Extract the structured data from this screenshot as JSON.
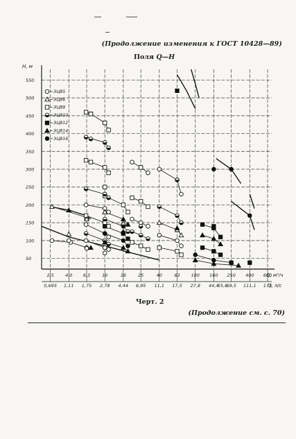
{
  "header": {
    "continuation": "(Продолжение изменения к ГОСТ 10428—89)",
    "subtitle_prefix": "Поля ",
    "subtitle_var": "Q—H"
  },
  "caption": "Черт. 2",
  "continued": "(Продолжение см. с. 70)",
  "chart_data": {
    "type": "scatter",
    "title": "",
    "xlabel": "Q, м³/ч",
    "x2label": "Q, л/с",
    "ylabel": "H, м",
    "x_scale": "log",
    "y_scale": "linear",
    "grid": true,
    "legend_position": "top-left",
    "xlim": [
      2,
      700
    ],
    "ylim": [
      20,
      580
    ],
    "x_ticks": [
      "2,5",
      "4,0",
      "6,3",
      "10",
      "16",
      "25",
      "40",
      "63",
      "100",
      "160",
      "250",
      "400",
      "630"
    ],
    "x_tick_values": [
      2.5,
      4.0,
      6.3,
      10,
      16,
      25,
      40,
      63,
      100,
      160,
      250,
      400,
      630
    ],
    "x2_ticks": [
      "0,695",
      "1,11",
      "1,75",
      "2,78",
      "4,44",
      "6,95",
      "11,1",
      "17,5",
      "27,8",
      "44,4",
      "69,5",
      "111,1",
      "175"
    ],
    "x2_tick_values": [
      0.695,
      1.11,
      1.75,
      2.78,
      4.44,
      6.95,
      11.1,
      17.5,
      27.8,
      44.4,
      69.5,
      111.1,
      175
    ],
    "x2_extra": [
      "55,6"
    ],
    "x2_extra_values": [
      55.6
    ],
    "y_ticks": [
      "50",
      "100",
      "150",
      "200",
      "250",
      "300",
      "350",
      "400",
      "450",
      "500",
      "550"
    ],
    "y_tick_values": [
      50,
      100,
      150,
      200,
      250,
      300,
      350,
      400,
      450,
      500,
      550
    ],
    "series": [
      {
        "name": "ЭЦВ5",
        "marker": "circle-open",
        "points": [
          [
            4,
            100
          ],
          [
            6.3,
            78
          ],
          [
            10,
            65
          ]
        ]
      },
      {
        "name": "ЭЦВ6",
        "marker": "triangle-open",
        "points": [
          [
            4,
            118
          ],
          [
            6.3,
            160
          ],
          [
            10,
            180
          ],
          [
            16,
            150
          ]
        ]
      },
      {
        "name": "ЭЦВ8",
        "marker": "square-open",
        "points": [
          [
            7,
            455
          ],
          [
            7,
            320
          ],
          [
            10,
            250
          ],
          [
            25,
            305
          ]
        ]
      },
      {
        "name": "ЭЦВ10",
        "marker": "circle-halffilled",
        "points": [
          [
            7,
            385
          ],
          [
            10,
            230
          ],
          [
            16,
            145
          ],
          [
            25,
            140
          ],
          [
            63,
            270
          ]
        ]
      },
      {
        "name": "ЭЦВ12",
        "marker": "square-filled",
        "points": [
          [
            63,
            520
          ],
          [
            160,
            140
          ],
          [
            250,
            38
          ],
          [
            400,
            38
          ]
        ]
      },
      {
        "name": "ЭЦВ14",
        "marker": "triangle-filled",
        "points": [
          [
            4,
            185
          ],
          [
            7,
            80
          ],
          [
            16,
            125
          ],
          [
            63,
            135
          ]
        ]
      },
      {
        "name": "ЭЦВ16",
        "marker": "circle-filled",
        "points": [
          [
            160,
            300
          ],
          [
            250,
            300
          ],
          [
            400,
            170
          ]
        ]
      }
    ],
    "fields": [
      {
        "marker": "circle-open",
        "points": [
          [
            2.6,
            100
          ],
          [
            4.2,
            95
          ],
          [
            6.3,
            80
          ]
        ]
      },
      {
        "marker": "triangle-open",
        "points": [
          [
            2.6,
            195
          ],
          [
            6.3,
            165
          ]
        ]
      },
      {
        "marker": "square-open",
        "points": [
          [
            6.2,
            460
          ],
          [
            7,
            455
          ],
          [
            10,
            430
          ],
          [
            11,
            410
          ]
        ]
      },
      {
        "marker": "circle-halffilled",
        "points": [
          [
            6.2,
            390
          ],
          [
            10,
            375
          ],
          [
            11,
            360
          ]
        ]
      },
      {
        "marker": "square-open",
        "points": [
          [
            6.2,
            325
          ],
          [
            10,
            305
          ],
          [
            11,
            290
          ]
        ]
      },
      {
        "marker": "circle-halffilled",
        "points": [
          [
            6.2,
            245
          ],
          [
            10,
            230
          ],
          [
            11,
            220
          ]
        ]
      },
      {
        "marker": "circle-open",
        "points": [
          [
            6.2,
            200
          ],
          [
            10,
            190
          ],
          [
            11,
            180
          ]
        ]
      },
      {
        "marker": "square-open",
        "points": [
          [
            6.2,
            170
          ],
          [
            10,
            150
          ],
          [
            11,
            140
          ]
        ]
      },
      {
        "marker": "circle-open",
        "points": [
          [
            6.2,
            145
          ],
          [
            10,
            120
          ],
          [
            11,
            110
          ]
        ]
      },
      {
        "marker": "circle-halffilled",
        "points": [
          [
            6.2,
            120
          ],
          [
            10,
            100
          ],
          [
            11,
            90
          ]
        ]
      },
      {
        "marker": "circle-open",
        "points": [
          [
            6.2,
            100
          ],
          [
            10,
            80
          ],
          [
            11,
            75
          ]
        ]
      },
      {
        "marker": "square-open",
        "points": [
          [
            10,
            225
          ],
          [
            16,
            200
          ],
          [
            18,
            180
          ]
        ]
      },
      {
        "marker": "triangle-filled",
        "points": [
          [
            10,
            180
          ],
          [
            16,
            160
          ],
          [
            18,
            145
          ]
        ]
      },
      {
        "marker": "circle-halffilled",
        "points": [
          [
            10,
            160
          ],
          [
            16,
            140
          ],
          [
            18,
            125
          ]
        ]
      },
      {
        "marker": "square-filled",
        "points": [
          [
            10,
            140
          ],
          [
            16,
            120
          ],
          [
            18,
            105
          ]
        ]
      },
      {
        "marker": "circle-filled",
        "points": [
          [
            10,
            120
          ],
          [
            16,
            100
          ],
          [
            18,
            85
          ]
        ]
      },
      {
        "marker": "triangle-filled",
        "points": [
          [
            10,
            95
          ],
          [
            16,
            80
          ],
          [
            18,
            70
          ]
        ]
      },
      {
        "marker": "circle-open",
        "points": [
          [
            20,
            320
          ],
          [
            25,
            305
          ],
          [
            30,
            290
          ]
        ]
      },
      {
        "marker": "square-open",
        "points": [
          [
            20,
            220
          ],
          [
            25,
            210
          ],
          [
            30,
            195
          ]
        ]
      },
      {
        "marker": "circle-open",
        "points": [
          [
            20,
            160
          ],
          [
            25,
            150
          ],
          [
            30,
            140
          ]
        ]
      },
      {
        "marker": "circle-halffilled",
        "points": [
          [
            20,
            125
          ],
          [
            25,
            115
          ],
          [
            30,
            105
          ]
        ]
      },
      {
        "marker": "square-open",
        "points": [
          [
            20,
            95
          ],
          [
            25,
            85
          ],
          [
            30,
            75
          ]
        ]
      },
      {
        "marker": "circle-open",
        "points": [
          [
            40,
            300
          ],
          [
            63,
            270
          ],
          [
            70,
            230
          ]
        ]
      },
      {
        "marker": "circle-halffilled",
        "points": [
          [
            40,
            195
          ],
          [
            63,
            170
          ],
          [
            70,
            150
          ]
        ]
      },
      {
        "marker": "triangle-open",
        "points": [
          [
            40,
            150
          ],
          [
            63,
            130
          ],
          [
            70,
            115
          ]
        ]
      },
      {
        "marker": "circle-open",
        "points": [
          [
            40,
            115
          ],
          [
            63,
            100
          ],
          [
            70,
            85
          ]
        ]
      },
      {
        "marker": "square-open",
        "points": [
          [
            40,
            80
          ],
          [
            63,
            70
          ],
          [
            70,
            60
          ]
        ]
      },
      {
        "marker": "square-filled",
        "points": [
          [
            120,
            145
          ],
          [
            160,
            135
          ],
          [
            190,
            110
          ]
        ]
      },
      {
        "marker": "triangle-filled",
        "points": [
          [
            120,
            115
          ],
          [
            160,
            105
          ],
          [
            190,
            90
          ]
        ]
      },
      {
        "marker": "square-filled",
        "points": [
          [
            120,
            80
          ],
          [
            160,
            70
          ],
          [
            190,
            60
          ]
        ]
      },
      {
        "marker": "circle-filled",
        "points": [
          [
            100,
            60
          ],
          [
            160,
            45
          ],
          [
            250,
            38
          ]
        ]
      },
      {
        "marker": "triangle-filled",
        "points": [
          [
            100,
            45
          ],
          [
            160,
            35
          ],
          [
            300,
            30
          ]
        ]
      }
    ],
    "curves": [
      {
        "points": [
          [
            2,
            140
          ],
          [
            4,
            110
          ],
          [
            10,
            85
          ],
          [
            20,
            65
          ],
          [
            40,
            45
          ]
        ]
      },
      {
        "points": [
          [
            2.5,
            195
          ],
          [
            4,
            185
          ],
          [
            6.3,
            170
          ],
          [
            7,
            160
          ]
        ]
      },
      {
        "points": [
          [
            63,
            565
          ],
          [
            80,
            520
          ],
          [
            100,
            470
          ]
        ]
      },
      {
        "points": [
          [
            90,
            580
          ],
          [
            100,
            540
          ],
          [
            110,
            500
          ]
        ]
      },
      {
        "points": [
          [
            170,
            330
          ],
          [
            250,
            300
          ],
          [
            320,
            260
          ]
        ]
      },
      {
        "points": [
          [
            250,
            210
          ],
          [
            400,
            170
          ],
          [
            450,
            130
          ]
        ]
      },
      {
        "points": [
          [
            400,
            230
          ],
          [
            450,
            190
          ]
        ]
      }
    ]
  }
}
